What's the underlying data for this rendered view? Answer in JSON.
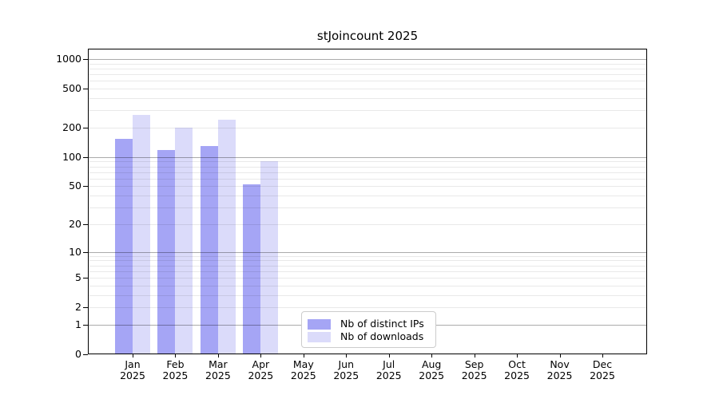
{
  "chart_data": {
    "type": "bar",
    "title": "stJoincount 2025",
    "categories": [
      "Jan",
      "Feb",
      "Mar",
      "Apr",
      "May",
      "Jun",
      "Jul",
      "Aug",
      "Sep",
      "Oct",
      "Nov",
      "Dec"
    ],
    "x_tick_sublabel": "2025",
    "series": [
      {
        "name": "Nb of distinct IPs",
        "color": "#a5a5f5",
        "values": [
          155,
          118,
          130,
          52,
          null,
          null,
          null,
          null,
          null,
          null,
          null,
          null
        ]
      },
      {
        "name": "Nb of downloads",
        "color": "#dbdbfa",
        "values": [
          270,
          200,
          243,
          91,
          null,
          null,
          null,
          null,
          null,
          null,
          null,
          null
        ]
      }
    ],
    "yscale": "log10(1+y)",
    "y_tick_values": [
      0,
      1,
      2,
      5,
      10,
      20,
      50,
      100,
      200,
      500,
      1000
    ],
    "y_tick_labels": [
      "0",
      "1",
      "2",
      "5",
      "10",
      "20",
      "50",
      "100",
      "200",
      "500",
      "1000"
    ],
    "y_major_gridlines": [
      1,
      10,
      100,
      1000
    ],
    "ylim": [
      0,
      1250
    ],
    "grid": {
      "major_color": "rgba(0,0,0,0.33)",
      "minor_color": "rgba(0,0,0,0.085)"
    },
    "legend_position": "lower-center-left inside plot"
  }
}
